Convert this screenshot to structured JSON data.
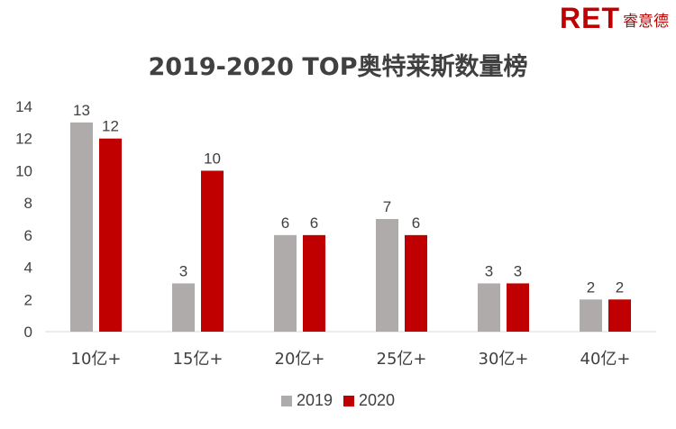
{
  "logo": {
    "mark": "RET",
    "sub": "睿意德"
  },
  "chart_data": {
    "type": "bar",
    "title": "2019-2020 TOP奥特莱斯数量榜",
    "categories": [
      "10亿+",
      "15亿+",
      "20亿+",
      "25亿+",
      "30亿+",
      "40亿+"
    ],
    "series": [
      {
        "name": "2019",
        "values": [
          13,
          3,
          6,
          7,
          3,
          2
        ],
        "color": "#afabab"
      },
      {
        "name": "2020",
        "values": [
          12,
          10,
          6,
          6,
          3,
          2
        ],
        "color": "#c00000"
      }
    ],
    "ylim": [
      0,
      14
    ],
    "yticks": [
      0,
      2,
      4,
      6,
      8,
      10,
      12,
      14
    ],
    "xlabel": "",
    "ylabel": "",
    "grid": false,
    "legend": "bottom"
  }
}
